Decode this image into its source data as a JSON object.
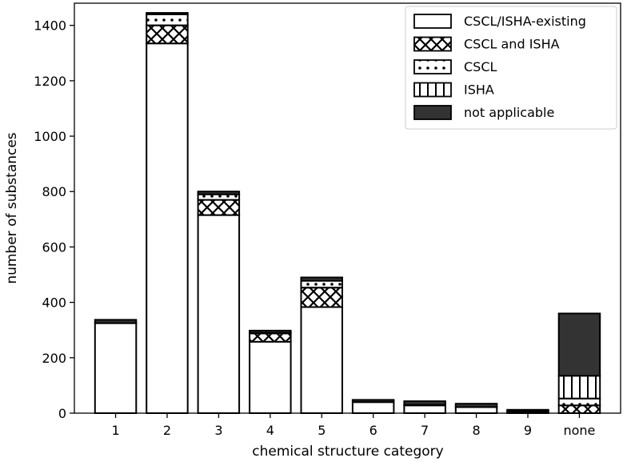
{
  "chart_data": {
    "type": "bar",
    "stacked": true,
    "xlabel": "chemical structure category",
    "ylabel": "number of substances",
    "ylim": [
      0,
      1480
    ],
    "yticks": [
      0,
      200,
      400,
      600,
      800,
      1000,
      1200,
      1400
    ],
    "categories": [
      "1",
      "2",
      "3",
      "4",
      "5",
      "6",
      "7",
      "8",
      "9",
      "none"
    ],
    "legend_position": "top-right",
    "grid": false,
    "series": [
      {
        "name": "CSCL/ISHA-existing",
        "pattern": "none",
        "color": "#ffffff",
        "values": [
          325,
          1335,
          715,
          258,
          383,
          40,
          28,
          22,
          6,
          0
        ]
      },
      {
        "name": "CSCL and ISHA",
        "pattern": "crosshatch",
        "color": "#ffffff",
        "values": [
          0,
          65,
          55,
          30,
          70,
          0,
          0,
          0,
          0,
          28
        ]
      },
      {
        "name": "CSCL",
        "pattern": "dots",
        "color": "#ffffff",
        "values": [
          0,
          40,
          20,
          2,
          25,
          0,
          2,
          0,
          0,
          25
        ]
      },
      {
        "name": "ISHA",
        "pattern": "vertical-lines",
        "color": "#ffffff",
        "values": [
          0,
          0,
          0,
          0,
          0,
          0,
          0,
          0,
          0,
          82
        ]
      },
      {
        "name": "not applicable",
        "pattern": "solid",
        "color": "#333333",
        "values": [
          12,
          5,
          10,
          8,
          12,
          8,
          13,
          12,
          6,
          225
        ]
      }
    ]
  }
}
